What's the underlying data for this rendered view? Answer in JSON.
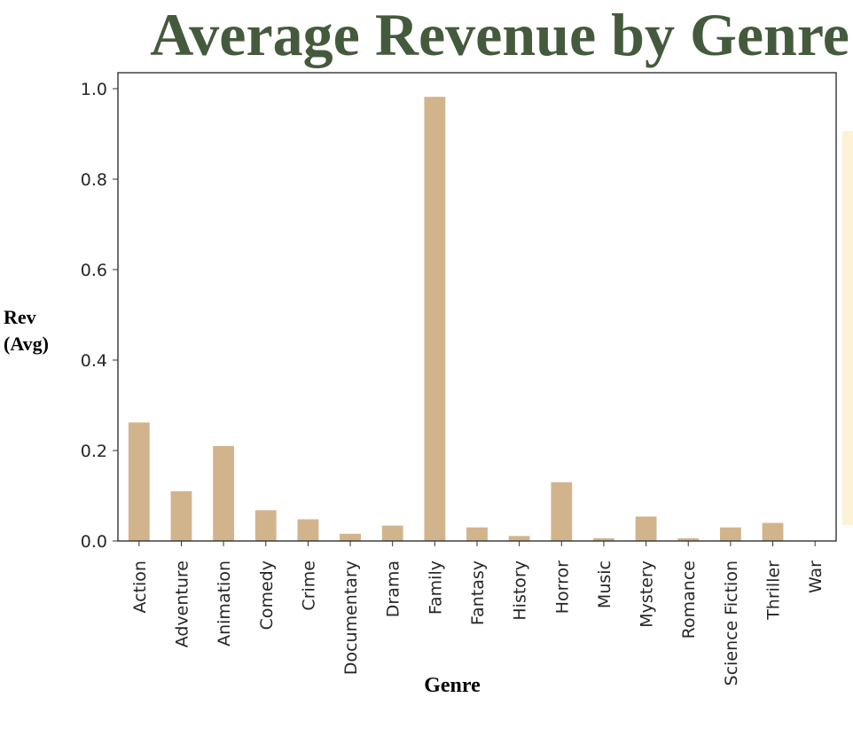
{
  "chart_data": {
    "type": "bar",
    "title": "Average Revenue by Genre",
    "xlabel": "Genre",
    "ylabel": "Rev (Avg)",
    "ylabel_lines": [
      "Rev",
      "(Avg)"
    ],
    "categories": [
      "Action",
      "Adventure",
      "Animation",
      "Comedy",
      "Crime",
      "Documentary",
      "Drama",
      "Family",
      "Fantasy",
      "History",
      "Horror",
      "Music",
      "Mystery",
      "Romance",
      "Science Fiction",
      "Thriller",
      "War"
    ],
    "values": [
      0.262,
      0.11,
      0.21,
      0.068,
      0.048,
      0.016,
      0.034,
      0.982,
      0.03,
      0.011,
      0.13,
      0.006,
      0.054,
      0.006,
      0.03,
      0.04,
      0.0
    ],
    "ylim": [
      0,
      1.0
    ],
    "yticks": [
      "0.0",
      "0.2",
      "0.4",
      "0.6",
      "0.8",
      "1.0"
    ],
    "grid": false,
    "legend": "none"
  },
  "colors": {
    "title": "#445a3c",
    "bar": "#d2b48c",
    "axis": "#333333",
    "tick_label": "#262626",
    "decor_strip": "#fdf1d6"
  }
}
